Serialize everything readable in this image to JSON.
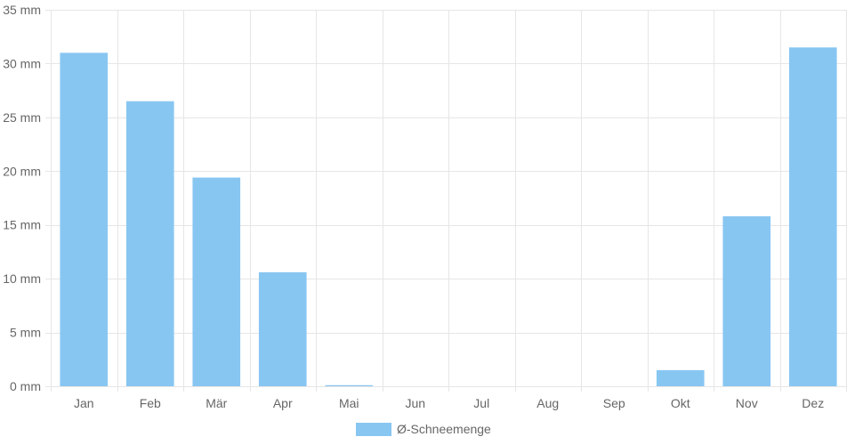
{
  "chart_data": {
    "type": "bar",
    "categories": [
      "Jan",
      "Feb",
      "Mär",
      "Apr",
      "Mai",
      "Jun",
      "Jul",
      "Aug",
      "Sep",
      "Okt",
      "Nov",
      "Dez"
    ],
    "series": [
      {
        "name": "Ø-Schneemenge",
        "values": [
          31.0,
          26.5,
          19.4,
          10.6,
          0.1,
          0,
          0,
          0,
          0,
          1.5,
          15.8,
          31.5
        ],
        "color": "#88c6f2"
      }
    ],
    "ylim": [
      0,
      35
    ],
    "yticks": [
      0,
      5,
      10,
      15,
      20,
      25,
      30,
      35
    ],
    "ytick_labels": [
      "0 mm",
      "5 mm",
      "10 mm",
      "15 mm",
      "20 mm",
      "25 mm",
      "30 mm",
      "35 mm"
    ],
    "grid": true,
    "grid_color": "#e6e6e6",
    "legend_position": "bottom"
  }
}
